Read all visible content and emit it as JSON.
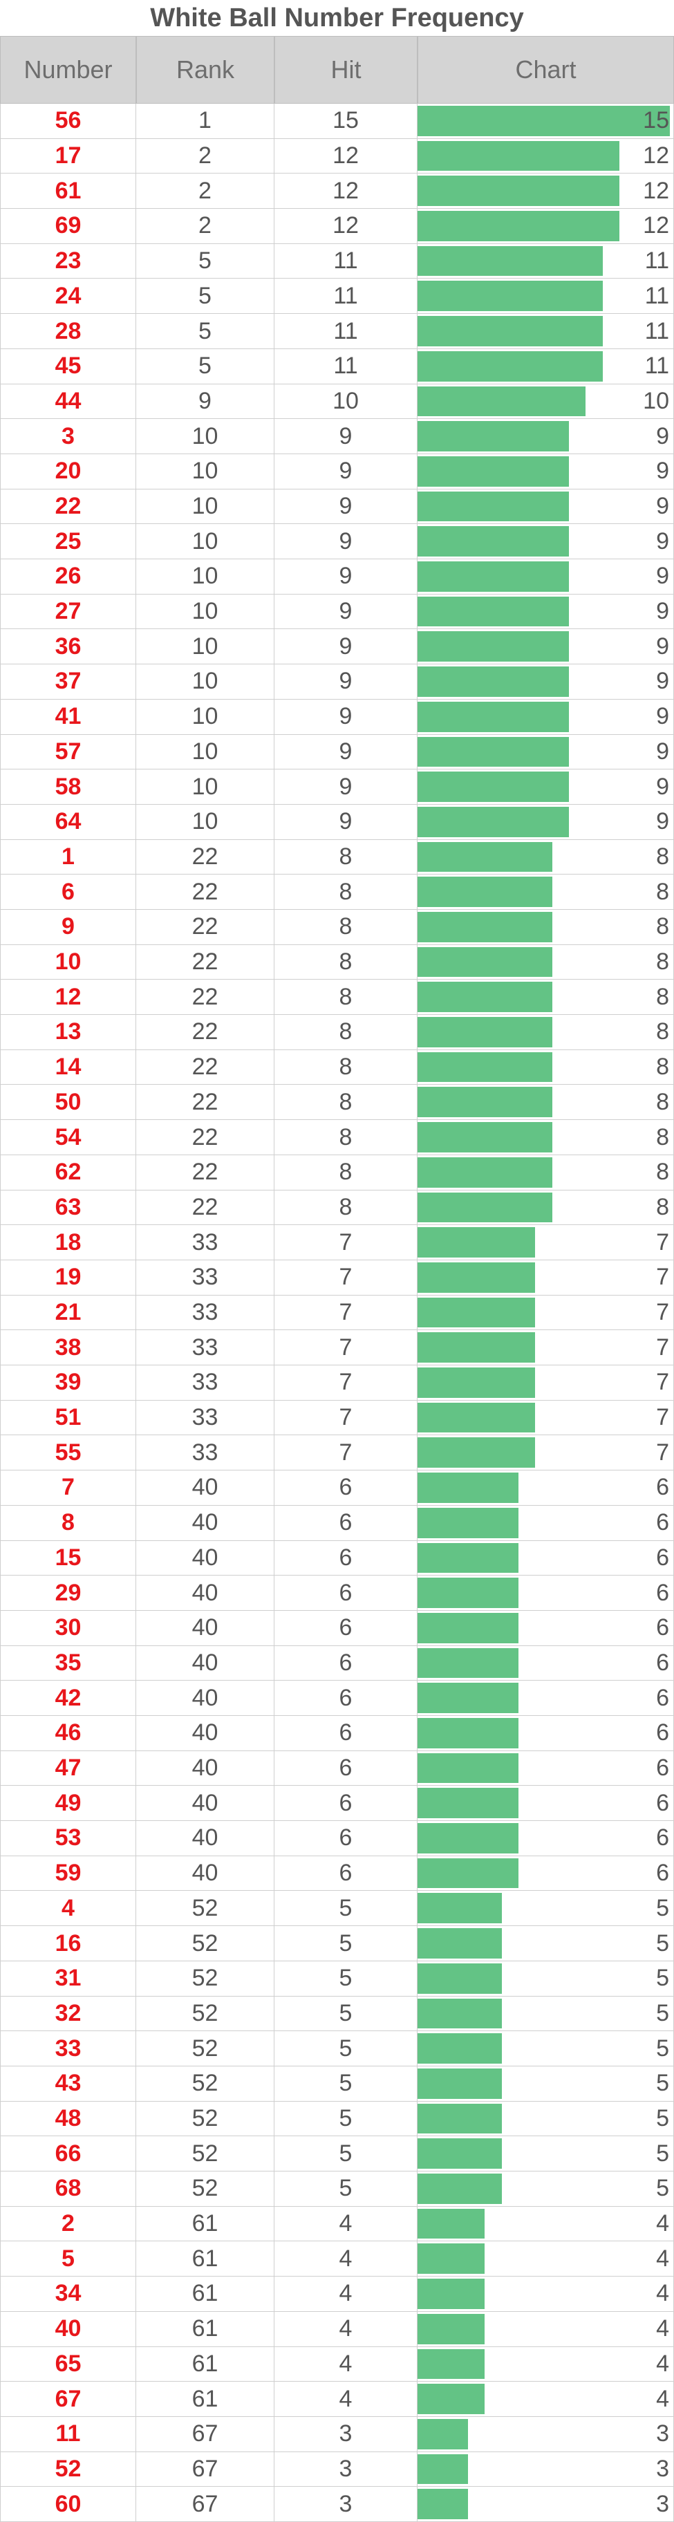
{
  "chart_data": {
    "type": "table",
    "title": "White Ball Number Frequency",
    "columns": [
      "Number",
      "Rank",
      "Hit",
      "Chart"
    ],
    "max_hit": 15,
    "rows": [
      {
        "number": "56",
        "rank": "1",
        "hit": 15
      },
      {
        "number": "17",
        "rank": "2",
        "hit": 12
      },
      {
        "number": "61",
        "rank": "2",
        "hit": 12
      },
      {
        "number": "69",
        "rank": "2",
        "hit": 12
      },
      {
        "number": "23",
        "rank": "5",
        "hit": 11
      },
      {
        "number": "24",
        "rank": "5",
        "hit": 11
      },
      {
        "number": "28",
        "rank": "5",
        "hit": 11
      },
      {
        "number": "45",
        "rank": "5",
        "hit": 11
      },
      {
        "number": "44",
        "rank": "9",
        "hit": 10
      },
      {
        "number": "3",
        "rank": "10",
        "hit": 9
      },
      {
        "number": "20",
        "rank": "10",
        "hit": 9
      },
      {
        "number": "22",
        "rank": "10",
        "hit": 9
      },
      {
        "number": "25",
        "rank": "10",
        "hit": 9
      },
      {
        "number": "26",
        "rank": "10",
        "hit": 9
      },
      {
        "number": "27",
        "rank": "10",
        "hit": 9
      },
      {
        "number": "36",
        "rank": "10",
        "hit": 9
      },
      {
        "number": "37",
        "rank": "10",
        "hit": 9
      },
      {
        "number": "41",
        "rank": "10",
        "hit": 9
      },
      {
        "number": "57",
        "rank": "10",
        "hit": 9
      },
      {
        "number": "58",
        "rank": "10",
        "hit": 9
      },
      {
        "number": "64",
        "rank": "10",
        "hit": 9
      },
      {
        "number": "1",
        "rank": "22",
        "hit": 8
      },
      {
        "number": "6",
        "rank": "22",
        "hit": 8
      },
      {
        "number": "9",
        "rank": "22",
        "hit": 8
      },
      {
        "number": "10",
        "rank": "22",
        "hit": 8
      },
      {
        "number": "12",
        "rank": "22",
        "hit": 8
      },
      {
        "number": "13",
        "rank": "22",
        "hit": 8
      },
      {
        "number": "14",
        "rank": "22",
        "hit": 8
      },
      {
        "number": "50",
        "rank": "22",
        "hit": 8
      },
      {
        "number": "54",
        "rank": "22",
        "hit": 8
      },
      {
        "number": "62",
        "rank": "22",
        "hit": 8
      },
      {
        "number": "63",
        "rank": "22",
        "hit": 8
      },
      {
        "number": "18",
        "rank": "33",
        "hit": 7
      },
      {
        "number": "19",
        "rank": "33",
        "hit": 7
      },
      {
        "number": "21",
        "rank": "33",
        "hit": 7
      },
      {
        "number": "38",
        "rank": "33",
        "hit": 7
      },
      {
        "number": "39",
        "rank": "33",
        "hit": 7
      },
      {
        "number": "51",
        "rank": "33",
        "hit": 7
      },
      {
        "number": "55",
        "rank": "33",
        "hit": 7
      },
      {
        "number": "7",
        "rank": "40",
        "hit": 6
      },
      {
        "number": "8",
        "rank": "40",
        "hit": 6
      },
      {
        "number": "15",
        "rank": "40",
        "hit": 6
      },
      {
        "number": "29",
        "rank": "40",
        "hit": 6
      },
      {
        "number": "30",
        "rank": "40",
        "hit": 6
      },
      {
        "number": "35",
        "rank": "40",
        "hit": 6
      },
      {
        "number": "42",
        "rank": "40",
        "hit": 6
      },
      {
        "number": "46",
        "rank": "40",
        "hit": 6
      },
      {
        "number": "47",
        "rank": "40",
        "hit": 6
      },
      {
        "number": "49",
        "rank": "40",
        "hit": 6
      },
      {
        "number": "53",
        "rank": "40",
        "hit": 6
      },
      {
        "number": "59",
        "rank": "40",
        "hit": 6
      },
      {
        "number": "4",
        "rank": "52",
        "hit": 5
      },
      {
        "number": "16",
        "rank": "52",
        "hit": 5
      },
      {
        "number": "31",
        "rank": "52",
        "hit": 5
      },
      {
        "number": "32",
        "rank": "52",
        "hit": 5
      },
      {
        "number": "33",
        "rank": "52",
        "hit": 5
      },
      {
        "number": "43",
        "rank": "52",
        "hit": 5
      },
      {
        "number": "48",
        "rank": "52",
        "hit": 5
      },
      {
        "number": "66",
        "rank": "52",
        "hit": 5
      },
      {
        "number": "68",
        "rank": "52",
        "hit": 5
      },
      {
        "number": "2",
        "rank": "61",
        "hit": 4
      },
      {
        "number": "5",
        "rank": "61",
        "hit": 4
      },
      {
        "number": "34",
        "rank": "61",
        "hit": 4
      },
      {
        "number": "40",
        "rank": "61",
        "hit": 4
      },
      {
        "number": "65",
        "rank": "61",
        "hit": 4
      },
      {
        "number": "67",
        "rank": "61",
        "hit": 4
      },
      {
        "number": "11",
        "rank": "67",
        "hit": 3
      },
      {
        "number": "52",
        "rank": "67",
        "hit": 3
      },
      {
        "number": "60",
        "rank": "67",
        "hit": 3
      }
    ],
    "colors": {
      "bar": "#63c385",
      "number_text": "#e8161b",
      "header_bg": "#d4d4d4"
    }
  }
}
